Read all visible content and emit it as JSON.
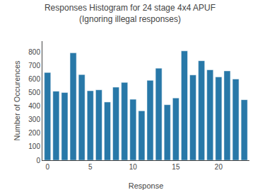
{
  "chart_data": {
    "type": "bar",
    "title": "Responses Histogram for 24 stage 4x4 APUF\n(Ignoring illegal responses)",
    "xlabel": "Response",
    "ylabel": "Number of Occurences",
    "x": [
      0,
      1,
      2,
      3,
      4,
      5,
      6,
      7,
      8,
      9,
      10,
      11,
      12,
      13,
      14,
      15,
      16,
      17,
      18,
      19,
      20,
      21,
      22,
      23
    ],
    "values": [
      648,
      510,
      500,
      793,
      633,
      513,
      520,
      430,
      540,
      575,
      450,
      365,
      590,
      680,
      410,
      460,
      808,
      630,
      735,
      668,
      615,
      660,
      600,
      447
    ],
    "color": "#2878a8",
    "xlim": [
      -0.6,
      23.6
    ],
    "xticks": [
      0,
      5,
      10,
      15,
      20
    ],
    "ylim": [
      0,
      880
    ],
    "yticks": [
      0,
      100,
      200,
      300,
      400,
      500,
      600,
      700,
      800
    ],
    "grid": false
  }
}
